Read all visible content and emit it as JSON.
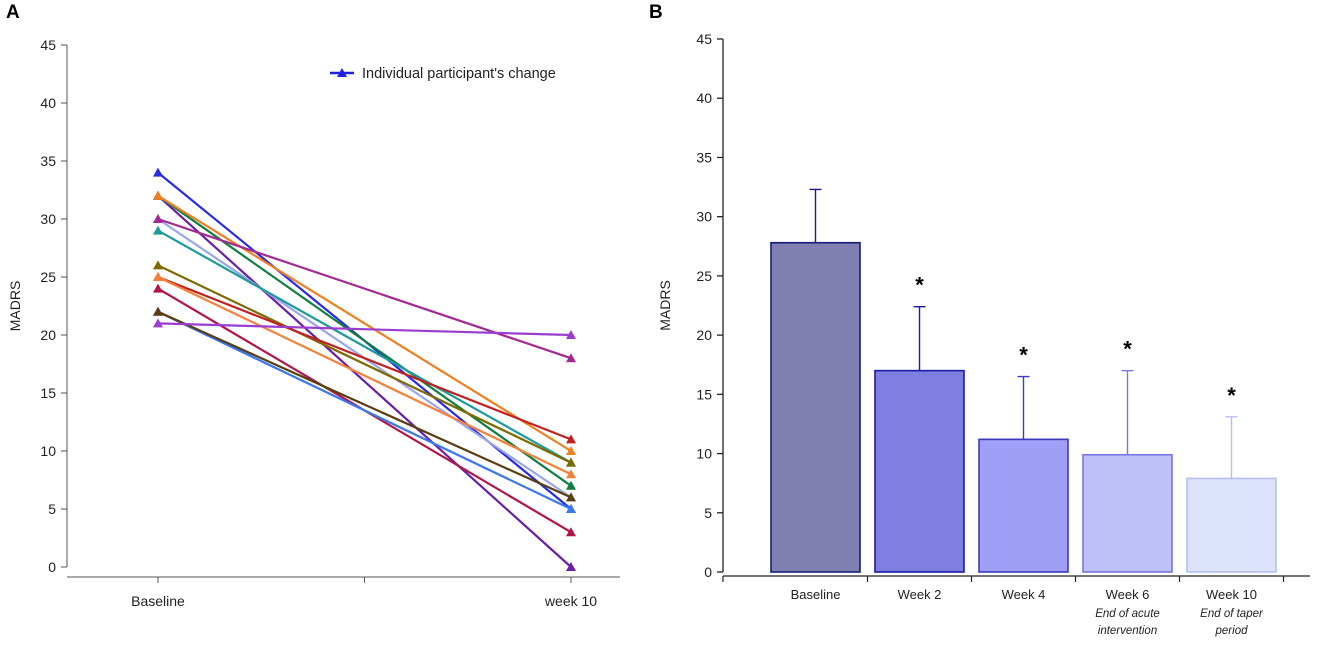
{
  "chart_data": [
    {
      "panel_label": "A",
      "type": "line",
      "title": "",
      "xlabel": "",
      "ylabel": "MADRS",
      "ylim": [
        0,
        45
      ],
      "yticks": [
        0,
        5,
        10,
        15,
        20,
        25,
        30,
        35,
        40,
        45
      ],
      "categories": [
        "Baseline",
        "week 10"
      ],
      "legend": {
        "label": "Individual participant's change",
        "color": "#2020e0",
        "position": "top-right"
      },
      "grid": false,
      "series": [
        {
          "name": "P1",
          "color": "#2a2ae6",
          "values": [
            34,
            5
          ]
        },
        {
          "name": "P2",
          "color": "#6a1fa8",
          "values": [
            32,
            0
          ]
        },
        {
          "name": "P3",
          "color": "#0f7f3f",
          "values": [
            32,
            7
          ]
        },
        {
          "name": "P4",
          "color": "#f07f20",
          "values": [
            32,
            10
          ]
        },
        {
          "name": "P5",
          "color": "#9aa6ea",
          "values": [
            30,
            6
          ]
        },
        {
          "name": "P6",
          "color": "#a32a8f",
          "values": [
            30,
            18
          ]
        },
        {
          "name": "P7",
          "color": "#1d9a9a",
          "values": [
            29,
            9
          ]
        },
        {
          "name": "P8",
          "color": "#7d6a00",
          "values": [
            26,
            9
          ]
        },
        {
          "name": "P9",
          "color": "#c02020",
          "values": [
            25,
            11
          ]
        },
        {
          "name": "P10",
          "color": "#f5803a",
          "values": [
            25,
            8
          ]
        },
        {
          "name": "P11",
          "color": "#b0154a",
          "values": [
            24,
            3
          ]
        },
        {
          "name": "P12",
          "color": "#3a78ec",
          "values": [
            22,
            5
          ]
        },
        {
          "name": "P13",
          "color": "#5a3e12",
          "values": [
            22,
            6
          ]
        },
        {
          "name": "P14",
          "color": "#9b3ed0",
          "values": [
            21,
            20
          ]
        }
      ]
    },
    {
      "panel_label": "B",
      "type": "bar",
      "title": "",
      "xlabel": "",
      "ylabel": "MADRS",
      "ylim": [
        0,
        45
      ],
      "yticks": [
        0,
        5,
        10,
        15,
        20,
        25,
        30,
        35,
        40,
        45
      ],
      "categories": [
        "Baseline",
        "Week 2",
        "Week 4",
        "Week 6",
        "Week 10"
      ],
      "sublabels": [
        "",
        "",
        "",
        "End of acute intervention",
        "End of taper period"
      ],
      "sublabel_lines": [
        [],
        [],
        [],
        [
          "End of acute",
          "intervention"
        ],
        [
          "End of taper",
          "period"
        ]
      ],
      "values": [
        27.8,
        17.0,
        11.2,
        9.9,
        7.9
      ],
      "error_upper": [
        32.3,
        22.4,
        16.5,
        17.0,
        13.1
      ],
      "significance": [
        "",
        "*",
        "*",
        "*",
        "*"
      ],
      "colors": [
        {
          "fill": "#7f7fb2",
          "stroke": "#1a1a7a"
        },
        {
          "fill": "#7f7fe0",
          "stroke": "#1a1aa8"
        },
        {
          "fill": "#9f9ff8",
          "stroke": "#3b3bc0"
        },
        {
          "fill": "#bfbff9",
          "stroke": "#7777dd"
        },
        {
          "fill": "#dde3fb",
          "stroke": "#b6c0f0"
        }
      ],
      "grid": false
    }
  ]
}
